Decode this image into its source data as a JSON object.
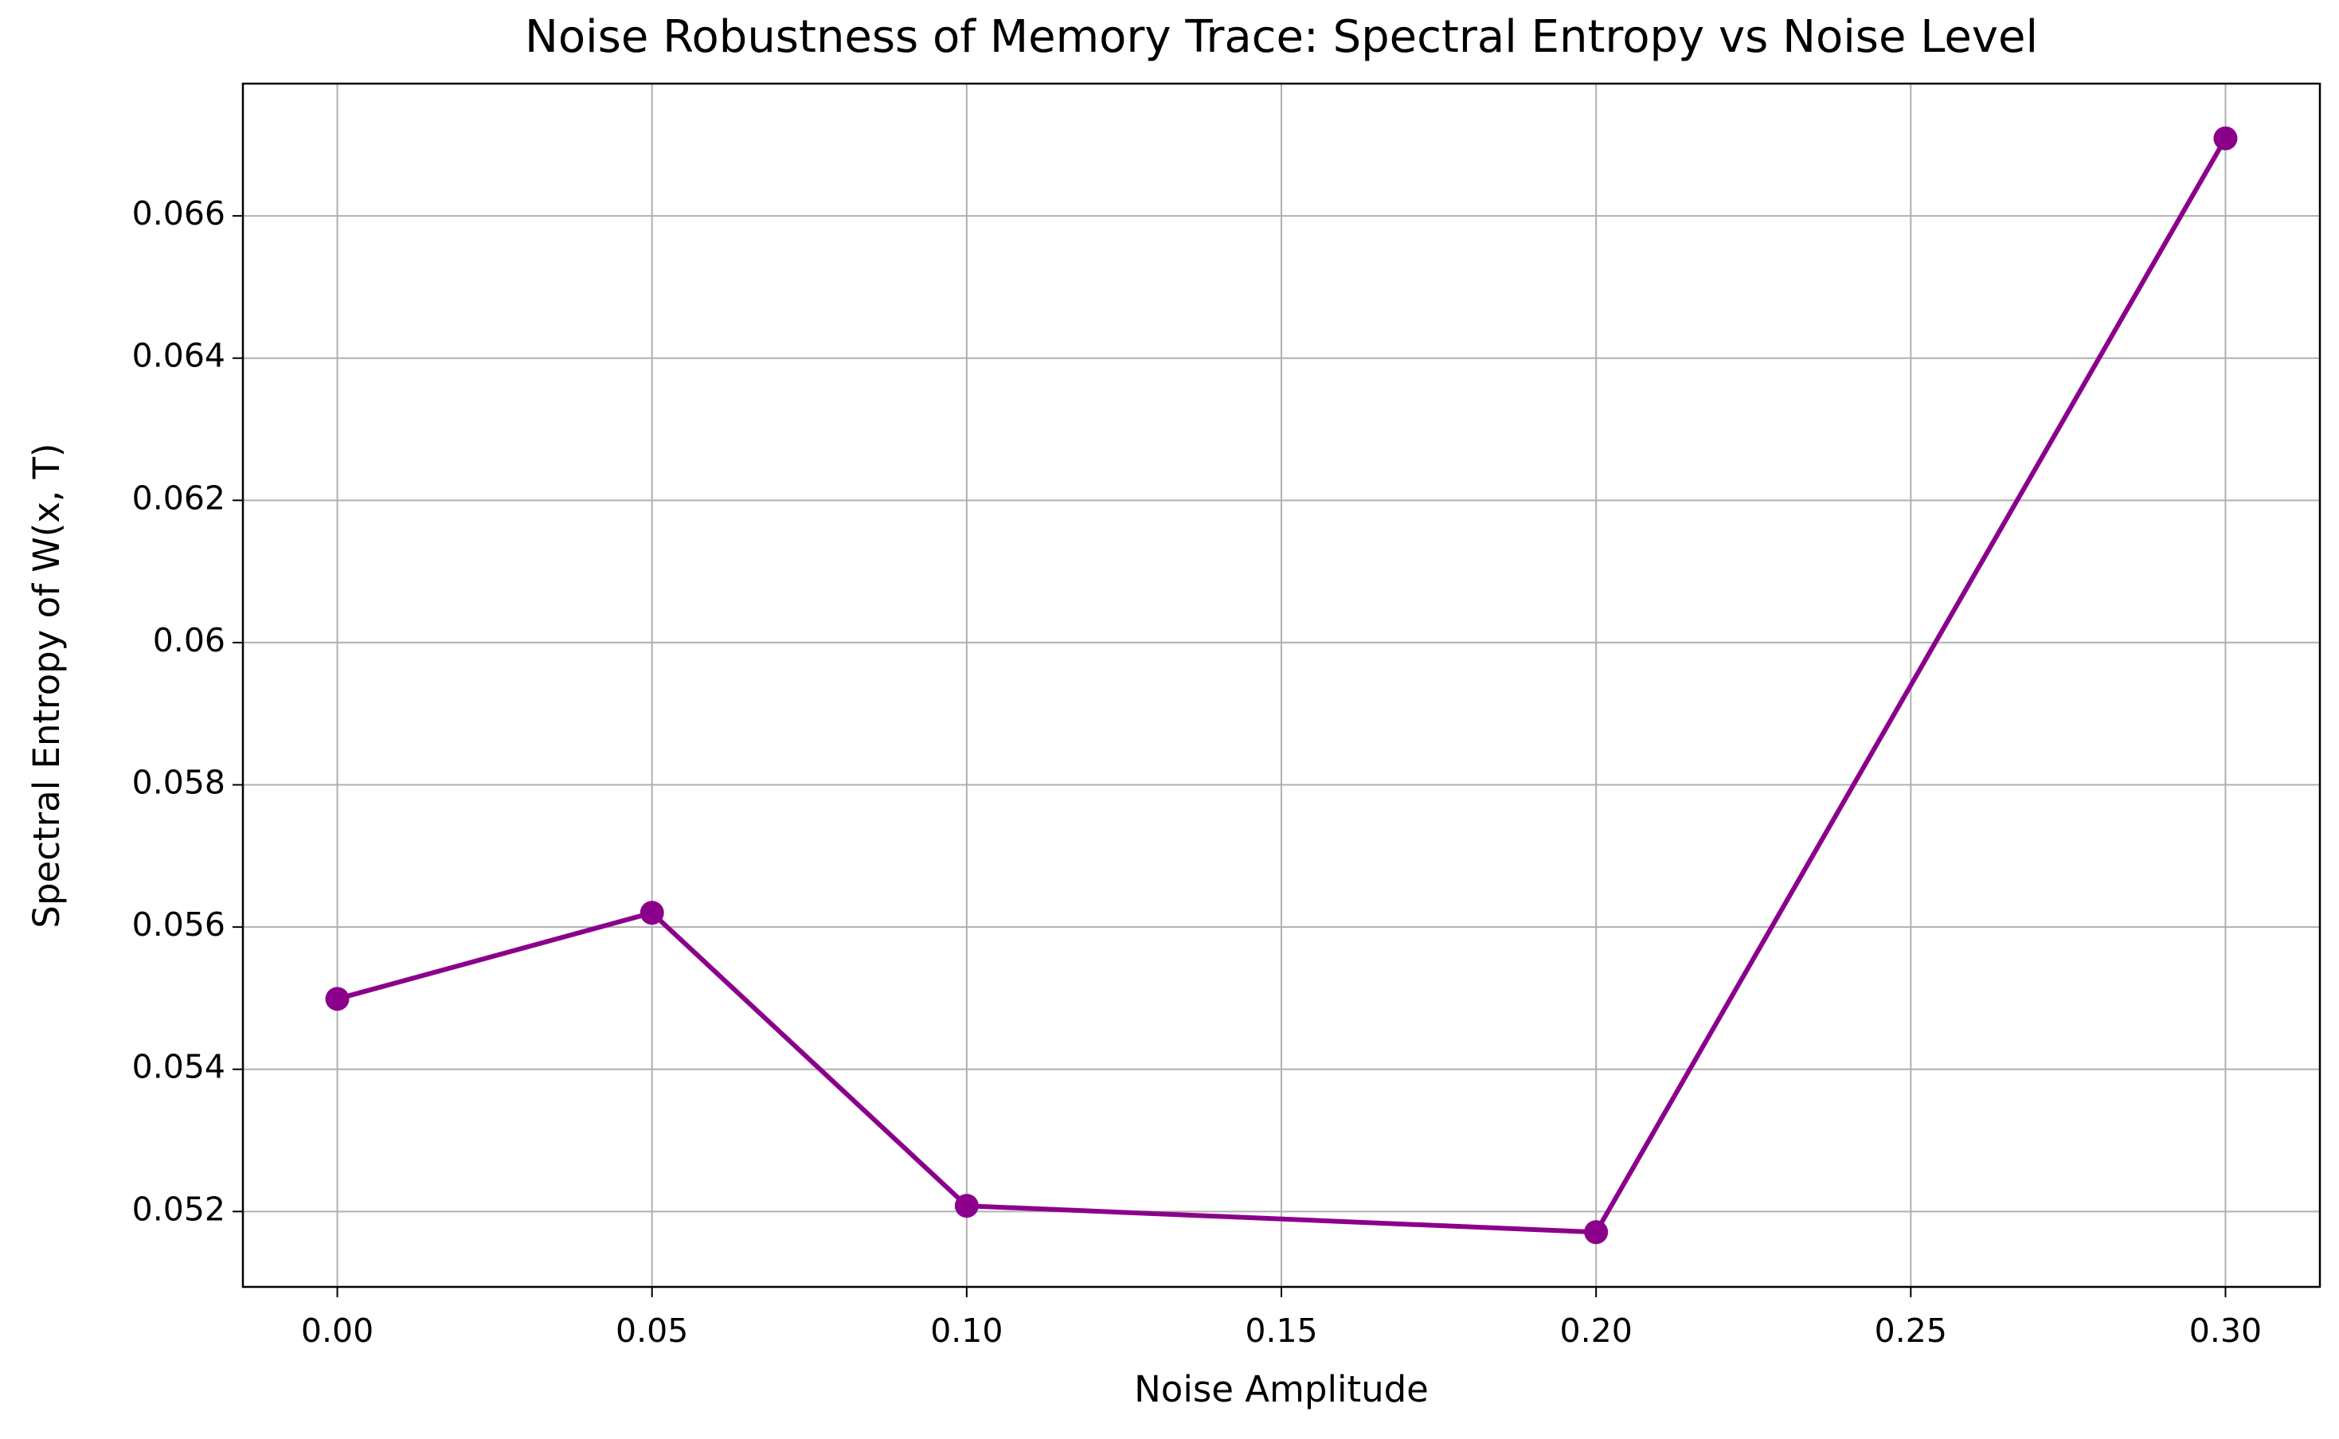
{
  "chart_data": {
    "type": "line",
    "title": "Noise Robustness of Memory Trace: Spectral Entropy vs Noise Level",
    "x_label": "Noise Amplitude",
    "y_label": "Spectral Entropy of W(x, T)",
    "x": [
      0.0,
      0.05,
      0.1,
      0.2,
      0.3
    ],
    "series": [
      {
        "name": "Spectral Entropy",
        "color": "#8b008b",
        "values": [
          0.05499,
          0.0562,
          0.05208,
          0.05171,
          0.06709
        ]
      }
    ],
    "xlim": [
      -0.015,
      0.315
    ],
    "ylim": [
      0.05094,
      0.06786
    ],
    "xticks": [
      {
        "value": 0,
        "label": "0.00"
      },
      0.05,
      {
        "value": 0.1,
        "label": "0.10"
      },
      0.15,
      {
        "value": 0.2,
        "label": "0.20"
      },
      0.25,
      {
        "value": 0.3,
        "label": "0.30"
      }
    ],
    "yticks": [
      0.052,
      0.054,
      0.056,
      0.058,
      0.06,
      0.062,
      0.064,
      0.066
    ],
    "grid": true
  }
}
